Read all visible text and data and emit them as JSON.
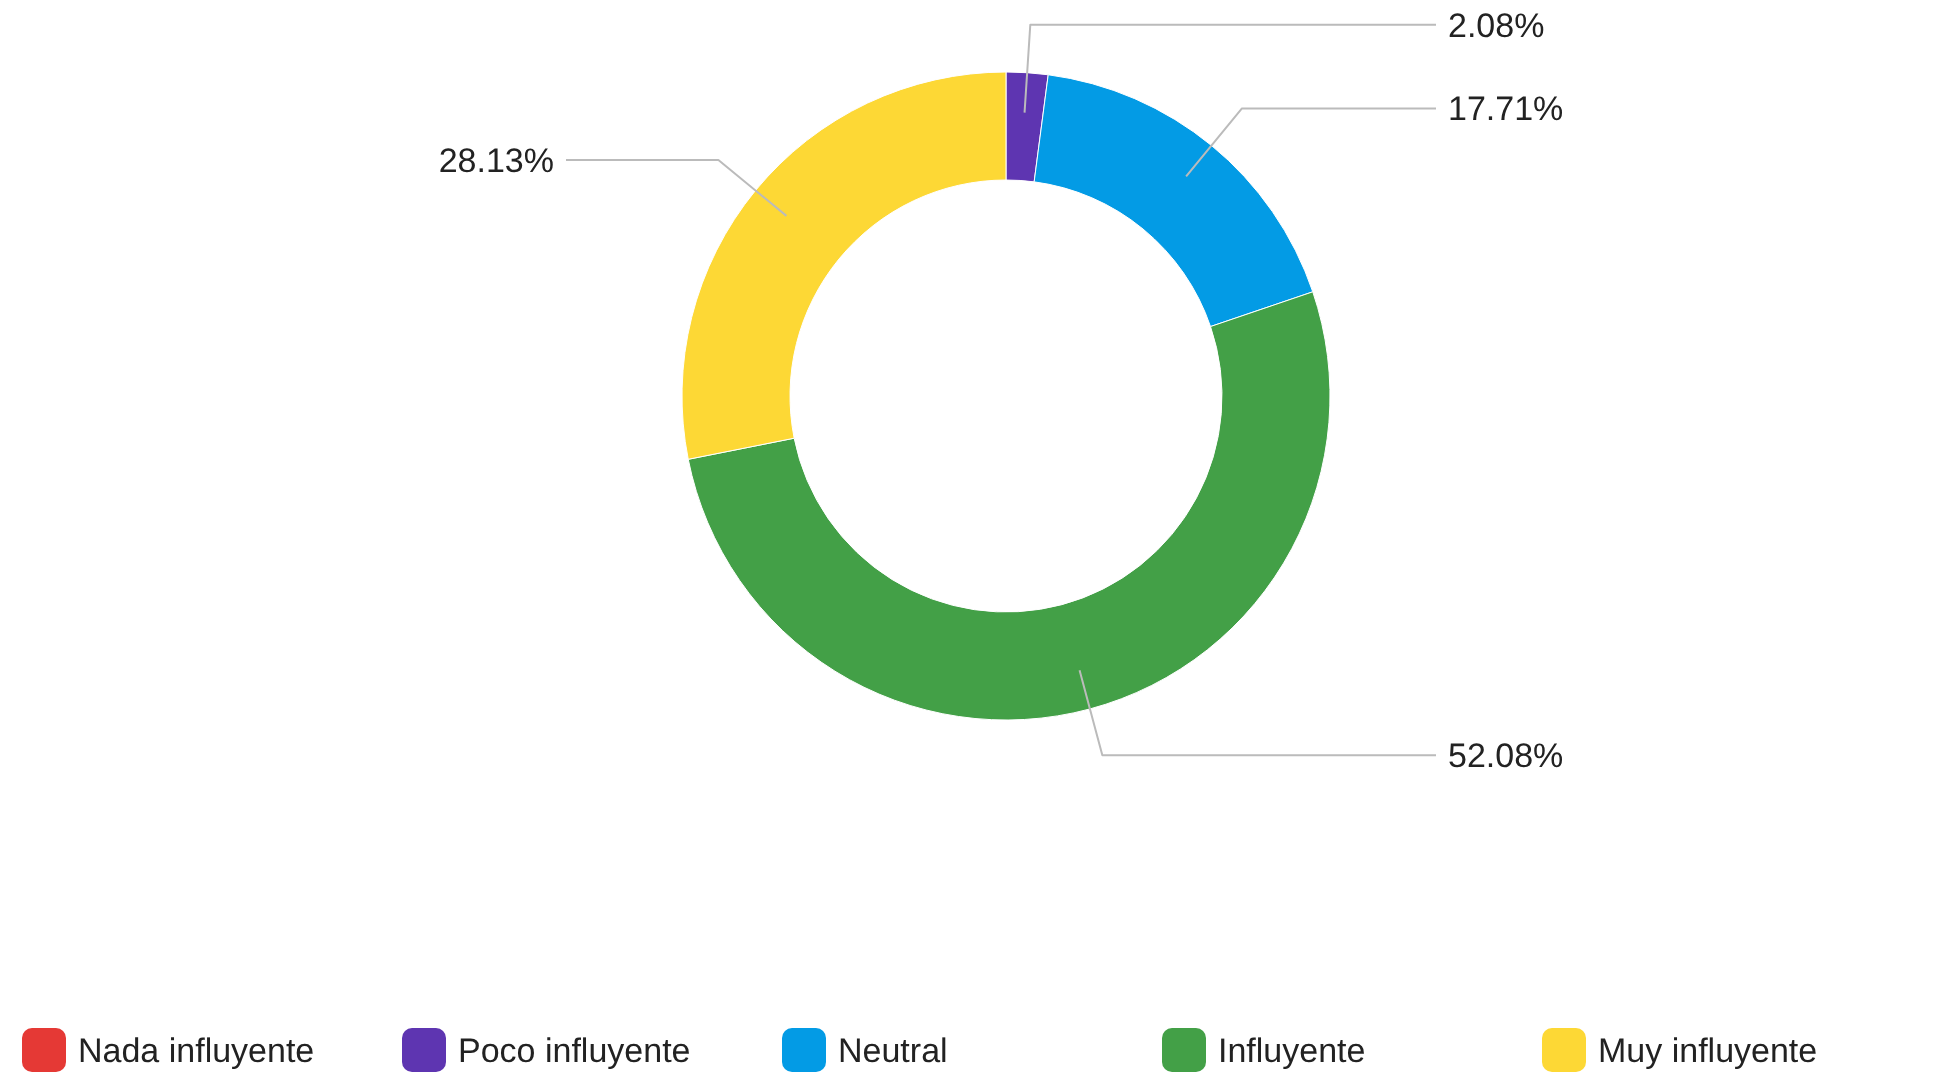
{
  "chart_data": {
    "type": "donut",
    "categories": [
      "Nada influyente",
      "Poco influyente",
      "Neutral",
      "Influyente",
      "Muy influyente"
    ],
    "values": [
      0,
      2.08,
      17.71,
      52.08,
      28.13
    ],
    "colors": [
      "#e53935",
      "#5e35b1",
      "#039be5",
      "#43a047",
      "#fdd835"
    ],
    "value_labels": [
      null,
      "2.08%",
      "17.71%",
      "52.08%",
      "28.13%"
    ],
    "legend": "bottom"
  }
}
